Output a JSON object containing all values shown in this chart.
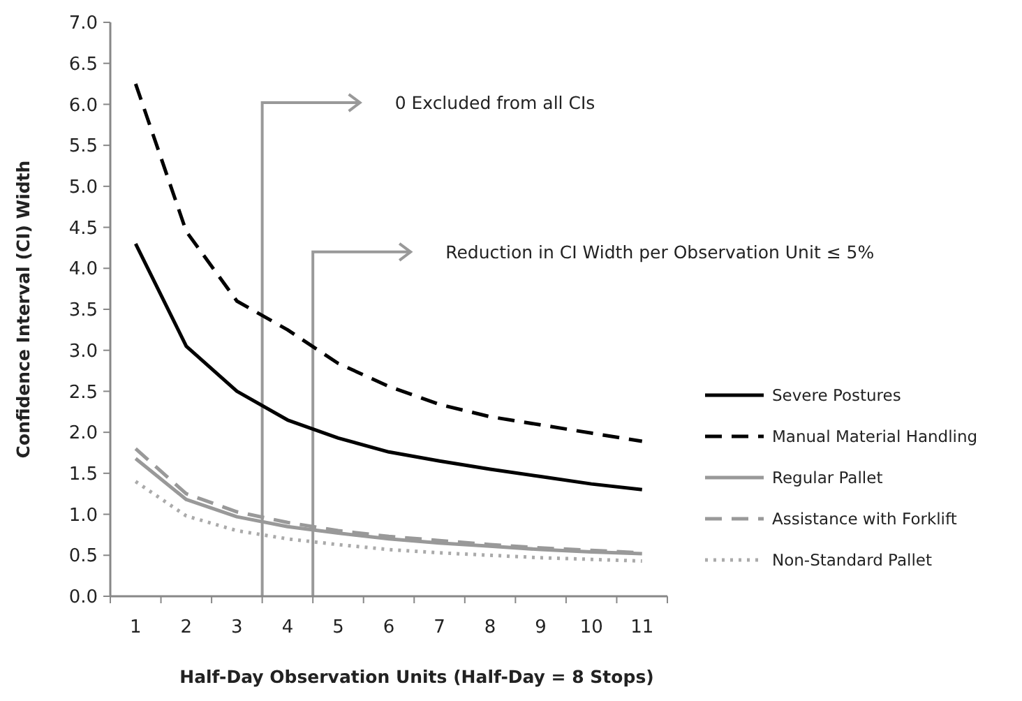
{
  "chart_data": {
    "type": "line",
    "xlabel": "Half-Day Observation Units (Half-Day = 8 Stops)",
    "ylabel": "Confidence Interval (CI) Width",
    "x": [
      1,
      2,
      3,
      4,
      5,
      6,
      7,
      8,
      9,
      10,
      11
    ],
    "xlim": [
      0.5,
      11.5
    ],
    "xticks": [
      1,
      2,
      3,
      4,
      5,
      6,
      7,
      8,
      9,
      10,
      11
    ],
    "ylim": [
      0,
      7
    ],
    "yticks": [
      {
        "value": 0,
        "label": "0.0"
      },
      {
        "value": 0.5,
        "label": "0.5"
      },
      {
        "value": 1,
        "label": "1.0"
      },
      {
        "value": 1.5,
        "label": "1.5"
      },
      {
        "value": 2,
        "label": "2.0"
      },
      {
        "value": 2.5,
        "label": "2.5"
      },
      {
        "value": 3,
        "label": "3.0"
      },
      {
        "value": 3.5,
        "label": "3.5"
      },
      {
        "value": 4,
        "label": "4.0"
      },
      {
        "value": 4.5,
        "label": "4.5"
      },
      {
        "value": 5,
        "label": "5.0"
      },
      {
        "value": 5.5,
        "label": "5.5"
      },
      {
        "value": 6,
        "label": "6.0"
      },
      {
        "value": 6.5,
        "label": "6.5"
      },
      {
        "value": 7,
        "label": "7.0"
      }
    ],
    "grid": false,
    "legend": "right",
    "series": [
      {
        "name": "Severe Postures",
        "color": "#000000",
        "line_style": "solid",
        "values": [
          4.3,
          3.05,
          2.5,
          2.15,
          1.93,
          1.76,
          1.65,
          1.55,
          1.46,
          1.37,
          1.3
        ]
      },
      {
        "name": "Manual Material Handling",
        "color": "#000000",
        "line_style": "dashed",
        "values": [
          6.25,
          4.45,
          3.6,
          3.25,
          2.84,
          2.56,
          2.34,
          2.19,
          2.09,
          1.99,
          1.89
        ]
      },
      {
        "name": "Regular Pallet",
        "color": "#999999",
        "line_style": "solid",
        "values": [
          1.68,
          1.18,
          0.97,
          0.85,
          0.77,
          0.7,
          0.65,
          0.61,
          0.57,
          0.54,
          0.52
        ]
      },
      {
        "name": "Assistance with Forklift",
        "color": "#999999",
        "line_style": "dashed",
        "values": [
          1.8,
          1.25,
          1.03,
          0.9,
          0.8,
          0.73,
          0.68,
          0.63,
          0.59,
          0.56,
          0.53
        ]
      },
      {
        "name": "Non-Standard Pallet",
        "color": "#aaaaaa",
        "line_style": "dotted",
        "values": [
          1.4,
          0.98,
          0.8,
          0.7,
          0.63,
          0.57,
          0.53,
          0.5,
          0.47,
          0.45,
          0.43
        ]
      }
    ],
    "ref_lines": [
      {
        "axis": "x",
        "value": 3.5,
        "label": "0 Excluded from all CIs",
        "color": "#999999"
      },
      {
        "axis": "x",
        "value": 4.5,
        "label": "Reduction in CI Width per Observation Unit ≤ 5%",
        "color": "#999999"
      }
    ]
  }
}
